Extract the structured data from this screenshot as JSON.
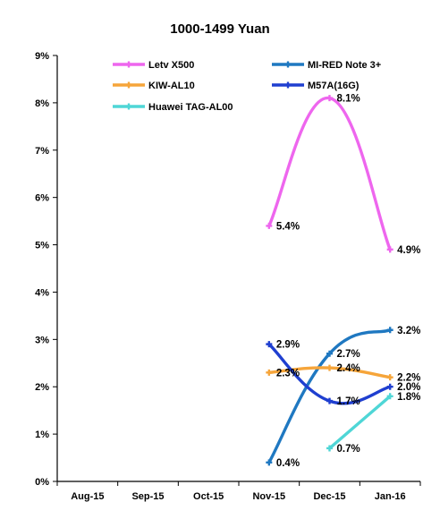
{
  "chart_data": {
    "type": "line",
    "title": "1000-1499 Yuan",
    "categories": [
      "Aug-15",
      "Sep-15",
      "Oct-15",
      "Nov-15",
      "Dec-15",
      "Jan-16"
    ],
    "ylim": [
      0,
      9
    ],
    "ytick_labels": [
      "0%",
      "1%",
      "2%",
      "3%",
      "4%",
      "5%",
      "6%",
      "7%",
      "8%",
      "9%"
    ],
    "grid": false,
    "legend_position": "top",
    "series": [
      {
        "name": "Letv X500",
        "color": "#ee66ee",
        "values": [
          null,
          null,
          null,
          5.4,
          8.1,
          4.9
        ],
        "labels": [
          "",
          "",
          "",
          "5.4%",
          "8.1%",
          "4.9%"
        ]
      },
      {
        "name": "MI-RED Note 3+",
        "color": "#1f78c1",
        "values": [
          null,
          null,
          null,
          0.4,
          2.7,
          3.2
        ],
        "labels": [
          "",
          "",
          "",
          "0.4%",
          "2.7%",
          "3.2%"
        ]
      },
      {
        "name": "KIW-AL10",
        "color": "#f6a53a",
        "values": [
          null,
          null,
          null,
          2.3,
          2.4,
          2.2
        ],
        "labels": [
          "",
          "",
          "",
          "2.3%",
          "2.4%",
          "2.2%"
        ]
      },
      {
        "name": "M57A(16G)",
        "color": "#1f3fd0",
        "values": [
          null,
          null,
          null,
          2.9,
          1.7,
          2.0
        ],
        "labels": [
          "",
          "",
          "",
          "2.9%",
          "1.7%",
          "2.0%"
        ]
      },
      {
        "name": "Huawei TAG-AL00",
        "color": "#4fd6d6",
        "values": [
          null,
          null,
          null,
          null,
          0.7,
          1.8
        ],
        "labels": [
          "",
          "",
          "",
          "",
          "0.7%",
          "1.8%"
        ]
      }
    ]
  }
}
